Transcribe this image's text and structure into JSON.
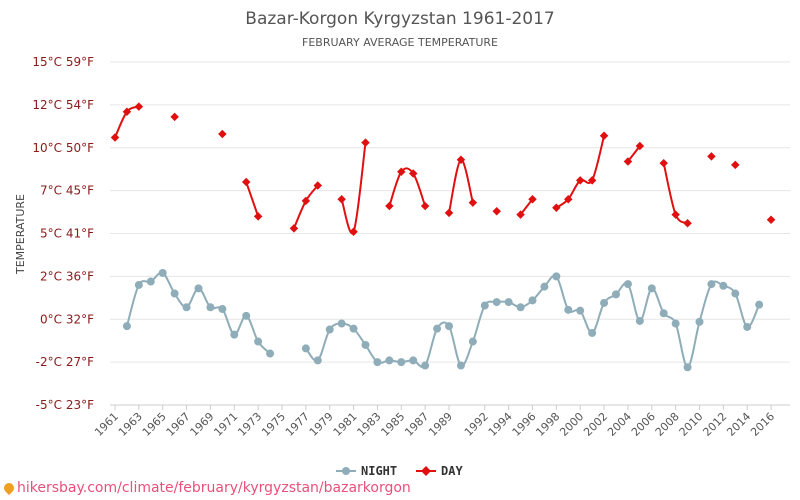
{
  "chart_data": {
    "type": "line",
    "title": "Bazar-Korgon Kyrgyzstan 1961-2017",
    "subtitle": "FEBRUARY AVERAGE TEMPERATURE",
    "ylabel": "TEMPERATURE",
    "ylim": [
      -5,
      15
    ],
    "xlim": [
      1961,
      2017
    ],
    "yticks": [
      {
        "value": 15,
        "label": "15°C 59°F"
      },
      {
        "value": 12.5,
        "label": "12°C 54°F"
      },
      {
        "value": 10,
        "label": "10°C 50°F"
      },
      {
        "value": 7.5,
        "label": "7°C 45°F"
      },
      {
        "value": 5,
        "label": "5°C 41°F"
      },
      {
        "value": 2.5,
        "label": "2°C 36°F"
      },
      {
        "value": 0,
        "label": "0°C 32°F"
      },
      {
        "value": -2.5,
        "label": "-2°C 27°F"
      },
      {
        "value": -5,
        "label": "-5°C 23°F"
      }
    ],
    "xticks": [
      1961,
      1963,
      1965,
      1967,
      1969,
      1971,
      1973,
      1975,
      1977,
      1979,
      1981,
      1983,
      1985,
      1987,
      1989,
      1992,
      1994,
      1996,
      1998,
      2000,
      2002,
      2004,
      2006,
      2008,
      2010,
      2012,
      2014,
      2016
    ],
    "grid": true,
    "legend_position": "bottom",
    "series": [
      {
        "name": "NIGHT",
        "color": "#8fadb8",
        "marker": "circle",
        "points": [
          [
            1962,
            -0.4
          ],
          [
            1963,
            2.0
          ],
          [
            1964,
            2.2
          ],
          [
            1965,
            2.7
          ],
          [
            1966,
            1.5
          ],
          [
            1967,
            0.7
          ],
          [
            1968,
            1.8
          ],
          [
            1969,
            0.7
          ],
          [
            1970,
            0.6
          ],
          [
            1971,
            -0.9
          ],
          [
            1972,
            0.2
          ],
          [
            1973,
            -1.3
          ],
          [
            1974,
            -2.0
          ],
          [
            1977,
            -1.7
          ],
          [
            1978,
            -2.4
          ],
          [
            1979,
            -0.6
          ],
          [
            1980,
            -0.25
          ],
          [
            1981,
            -0.55
          ],
          [
            1982,
            -1.5
          ],
          [
            1983,
            -2.5
          ],
          [
            1984,
            -2.4
          ],
          [
            1985,
            -2.5
          ],
          [
            1986,
            -2.4
          ],
          [
            1987,
            -2.7
          ],
          [
            1988,
            -0.55
          ],
          [
            1989,
            -0.4
          ],
          [
            1990,
            -2.7
          ],
          [
            1991,
            -1.3
          ],
          [
            1992,
            0.8
          ],
          [
            1993,
            1.0
          ],
          [
            1994,
            1.0
          ],
          [
            1995,
            0.7
          ],
          [
            1996,
            1.1
          ],
          [
            1997,
            1.9
          ],
          [
            1998,
            2.5
          ],
          [
            1999,
            0.55
          ],
          [
            2000,
            0.5
          ],
          [
            2001,
            -0.8
          ],
          [
            2002,
            0.95
          ],
          [
            2003,
            1.45
          ],
          [
            2004,
            2.05
          ],
          [
            2005,
            -0.1
          ],
          [
            2006,
            1.8
          ],
          [
            2007,
            0.35
          ],
          [
            2008,
            -0.25
          ],
          [
            2009,
            -2.8
          ],
          [
            2010,
            -0.15
          ],
          [
            2011,
            2.05
          ],
          [
            2012,
            1.95
          ],
          [
            2013,
            1.5
          ],
          [
            2014,
            -0.45
          ],
          [
            2015,
            0.85
          ]
        ]
      },
      {
        "name": "DAY",
        "color": "#e01010",
        "marker": "diamond",
        "points": [
          [
            1961,
            10.6
          ],
          [
            1962,
            12.1
          ],
          [
            1963,
            12.4
          ],
          [
            1966,
            11.8
          ],
          [
            1970,
            10.8
          ],
          [
            1972,
            8.0
          ],
          [
            1973,
            6.0
          ],
          [
            1976,
            5.3
          ],
          [
            1977,
            6.9
          ],
          [
            1978,
            7.8
          ],
          [
            1980,
            7.0
          ],
          [
            1981,
            5.1
          ],
          [
            1982,
            10.3
          ],
          [
            1984,
            6.6
          ],
          [
            1985,
            8.6
          ],
          [
            1986,
            8.5
          ],
          [
            1987,
            6.6
          ],
          [
            1989,
            6.2
          ],
          [
            1990,
            9.3
          ],
          [
            1991,
            6.8
          ],
          [
            1993,
            6.3
          ],
          [
            1995,
            6.1
          ],
          [
            1996,
            7.0
          ],
          [
            1998,
            6.5
          ],
          [
            1999,
            7.0
          ],
          [
            2000,
            8.1
          ],
          [
            2001,
            8.1
          ],
          [
            2002,
            10.7
          ],
          [
            2004,
            9.2
          ],
          [
            2005,
            10.1
          ],
          [
            2007,
            9.1
          ],
          [
            2008,
            6.1
          ],
          [
            2009,
            5.6
          ],
          [
            2011,
            9.5
          ],
          [
            2013,
            9.0
          ],
          [
            2016,
            5.8
          ]
        ]
      }
    ]
  },
  "footer": {
    "url": "hikersbay.com/climate/february/kyrgyzstan/bazarkorgon"
  }
}
